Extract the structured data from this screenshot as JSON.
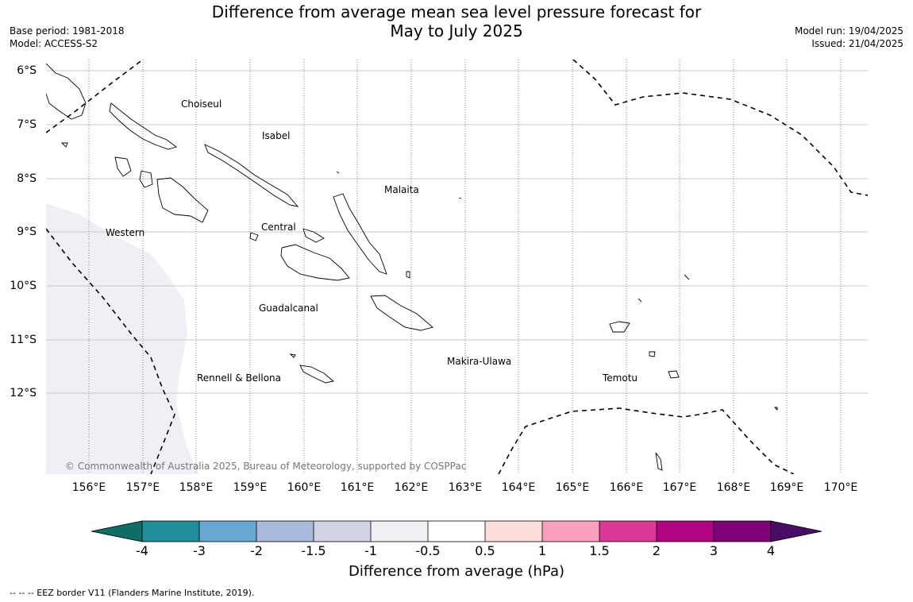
{
  "header": {
    "title_line1": "Difference from average mean sea level pressure forecast for",
    "title_line2": "May to July 2025",
    "base_period": "Base period: 1981-2018",
    "model": "Model: ACCESS-S2",
    "model_run": "Model run: 19/04/2025",
    "issued": "Issued: 21/04/2025"
  },
  "map": {
    "lat_labels": [
      "6°S",
      "7°S",
      "8°S",
      "9°S",
      "10°S",
      "11°S",
      "12°S"
    ],
    "lon_labels": [
      "156°E",
      "157°E",
      "158°E",
      "159°E",
      "160°E",
      "161°E",
      "162°E",
      "163°E",
      "164°E",
      "165°E",
      "166°E",
      "167°E",
      "168°E",
      "169°E",
      "170°E"
    ],
    "regions": [
      "Choiseul",
      "Isabel",
      "Malaita",
      "Western",
      "Central",
      "Guadalcanal",
      "Makira-Ulawa",
      "Rennell & Bellona",
      "Temotu"
    ],
    "copyright": "© Commonwealth of Australia 2025, Bureau of Meteorology, supported by COSPPac",
    "shaded_anomaly_range": "-1 to -0.5",
    "eez_line_style": "dashed"
  },
  "colorbar": {
    "ticks": [
      "-4",
      "-3",
      "-2",
      "-1.5",
      "-1",
      "-0.5",
      "0.5",
      "1",
      "1.5",
      "2",
      "3",
      "4"
    ],
    "colors": [
      "#0d6e68",
      "#1f8f9a",
      "#66a8d1",
      "#a8bbdc",
      "#d2d2e6",
      "#f2eef5",
      "#ffffff",
      "#fddcdc",
      "#f8a0bc",
      "#dc3898",
      "#b00482",
      "#7d0077",
      "#4a0d66"
    ],
    "label": "Difference from average (hPa)"
  },
  "footnote": "--  --  -- EEZ border V11 (Flanders Marine Institute, 2019)."
}
